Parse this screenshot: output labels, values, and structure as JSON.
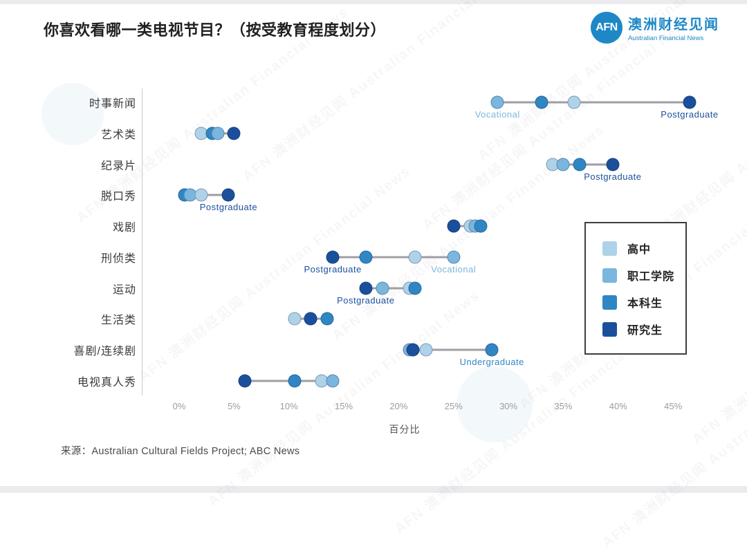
{
  "header": {
    "title": "你喜欢看哪一类电视节目？（按受教育程度划分）",
    "logo": {
      "abbr": "AFN",
      "name_cn": "澳洲财经见闻",
      "name_en": "Australian Financial News"
    }
  },
  "watermark_text": "AFN 澳洲财经见闻 Australian Financial News",
  "source": "来源：Australian Cultural Fields Project; ABC News",
  "colors": {
    "highschool": "#aed2e8",
    "vocational": "#7ab6dd",
    "undergraduate": "#2f86c3",
    "postgraduate": "#1a4f9c",
    "connector_line": "#9e9ea4",
    "logo_blue": "#1e88c7"
  },
  "legend": {
    "items": [
      {
        "key": "highschool",
        "label": "高中"
      },
      {
        "key": "vocational",
        "label": "职工学院"
      },
      {
        "key": "undergraduate",
        "label": "本科生"
      },
      {
        "key": "postgraduate",
        "label": "研究生"
      }
    ]
  },
  "chart_data": {
    "type": "scatter",
    "subtype": "dumbbell-dot-plot",
    "xlabel": "百分比",
    "x_ticks": [
      "0%",
      "5%",
      "10%",
      "15%",
      "20%",
      "25%",
      "30%",
      "35%",
      "40%",
      "45%"
    ],
    "xlim": [
      0,
      47
    ],
    "grid": false,
    "legend_position": "right-middle-box",
    "series_names": {
      "highschool": "高中",
      "vocational": "职工学院",
      "undergraduate": "本科生",
      "postgraduate": "研究生"
    },
    "categories": [
      "时事新闻",
      "艺术类",
      "纪录片",
      "脱口秀",
      "戏剧",
      "刑侦类",
      "运动",
      "生活类",
      "喜剧/连续剧",
      "电视真人秀"
    ],
    "rows": [
      {
        "category": "时事新闻",
        "points": [
          {
            "key": "vocational",
            "value": 29
          },
          {
            "key": "undergraduate",
            "value": 33
          },
          {
            "key": "highschool",
            "value": 36
          },
          {
            "key": "postgraduate",
            "value": 46.5
          }
        ],
        "annotations": [
          {
            "text": "Vocational",
            "at": 29,
            "key": "vocational"
          },
          {
            "text": "Postgraduate",
            "at": 46.5,
            "key": "postgraduate"
          }
        ]
      },
      {
        "category": "艺术类",
        "points": [
          {
            "key": "highschool",
            "value": 2
          },
          {
            "key": "undergraduate",
            "value": 3
          },
          {
            "key": "vocational",
            "value": 3.5
          },
          {
            "key": "postgraduate",
            "value": 5
          }
        ],
        "annotations": []
      },
      {
        "category": "纪录片",
        "points": [
          {
            "key": "highschool",
            "value": 34
          },
          {
            "key": "vocational",
            "value": 35
          },
          {
            "key": "undergraduate",
            "value": 36.5
          },
          {
            "key": "postgraduate",
            "value": 39.5
          }
        ],
        "annotations": [
          {
            "text": "Postgraduate",
            "at": 39.5,
            "key": "postgraduate"
          }
        ]
      },
      {
        "category": "脱口秀",
        "points": [
          {
            "key": "undergraduate",
            "value": 0.5
          },
          {
            "key": "vocational",
            "value": 1
          },
          {
            "key": "highschool",
            "value": 2
          },
          {
            "key": "postgraduate",
            "value": 4.5
          }
        ],
        "annotations": [
          {
            "text": "Postgraduate",
            "at": 4.5,
            "key": "postgraduate"
          }
        ]
      },
      {
        "category": "戏剧",
        "points": [
          {
            "key": "postgraduate",
            "value": 25
          },
          {
            "key": "highschool",
            "value": 26.5
          },
          {
            "key": "vocational",
            "value": 27
          },
          {
            "key": "undergraduate",
            "value": 27.5
          }
        ],
        "annotations": []
      },
      {
        "category": "刑侦类",
        "points": [
          {
            "key": "postgraduate",
            "value": 14
          },
          {
            "key": "undergraduate",
            "value": 17
          },
          {
            "key": "highschool",
            "value": 21.5
          },
          {
            "key": "vocational",
            "value": 25
          }
        ],
        "annotations": [
          {
            "text": "Postgraduate",
            "at": 14,
            "key": "postgraduate"
          },
          {
            "text": "Vocational",
            "at": 25,
            "key": "vocational"
          }
        ]
      },
      {
        "category": "运动",
        "points": [
          {
            "key": "postgraduate",
            "value": 17
          },
          {
            "key": "vocational",
            "value": 18.5
          },
          {
            "key": "highschool",
            "value": 21
          },
          {
            "key": "undergraduate",
            "value": 21.5
          }
        ],
        "annotations": [
          {
            "text": "Postgraduate",
            "at": 17,
            "key": "postgraduate"
          }
        ]
      },
      {
        "category": "生活类",
        "points": [
          {
            "key": "highschool",
            "value": 10.5
          },
          {
            "key": "vocational",
            "value": 12
          },
          {
            "key": "postgraduate",
            "value": 12
          },
          {
            "key": "undergraduate",
            "value": 13.5
          }
        ],
        "annotations": []
      },
      {
        "category": "喜剧/连续剧",
        "points": [
          {
            "key": "vocational",
            "value": 21
          },
          {
            "key": "postgraduate",
            "value": 21.3
          },
          {
            "key": "highschool",
            "value": 22.5
          },
          {
            "key": "undergraduate",
            "value": 28.5
          }
        ],
        "annotations": [
          {
            "text": "Undergraduate",
            "at": 28.5,
            "key": "undergraduate"
          }
        ]
      },
      {
        "category": "电视真人秀",
        "points": [
          {
            "key": "postgraduate",
            "value": 6
          },
          {
            "key": "undergraduate",
            "value": 10.5
          },
          {
            "key": "highschool",
            "value": 13
          },
          {
            "key": "vocational",
            "value": 14
          }
        ],
        "annotations": []
      }
    ]
  }
}
